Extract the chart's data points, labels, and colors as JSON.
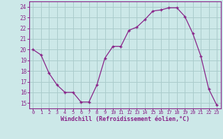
{
  "x": [
    0,
    1,
    2,
    3,
    4,
    5,
    6,
    7,
    8,
    9,
    10,
    11,
    12,
    13,
    14,
    15,
    16,
    17,
    18,
    19,
    20,
    21,
    22,
    23
  ],
  "y": [
    20.0,
    19.5,
    17.8,
    16.7,
    16.0,
    16.0,
    15.1,
    15.1,
    16.7,
    19.2,
    20.3,
    20.3,
    21.8,
    22.1,
    22.8,
    23.6,
    23.7,
    23.9,
    23.9,
    23.1,
    21.5,
    19.4,
    16.3,
    14.8
  ],
  "line_color": "#882288",
  "bg_color": "#cce8e8",
  "grid_color": "#aacccc",
  "axis_color": "#882288",
  "xlabel": "Windchill (Refroidissement éolien,°C)",
  "xlim": [
    -0.5,
    23.5
  ],
  "ylim": [
    14.5,
    24.5
  ],
  "xticks": [
    0,
    1,
    2,
    3,
    4,
    5,
    6,
    7,
    8,
    9,
    10,
    11,
    12,
    13,
    14,
    15,
    16,
    17,
    18,
    19,
    20,
    21,
    22,
    23
  ],
  "yticks": [
    15,
    16,
    17,
    18,
    19,
    20,
    21,
    22,
    23,
    24
  ]
}
